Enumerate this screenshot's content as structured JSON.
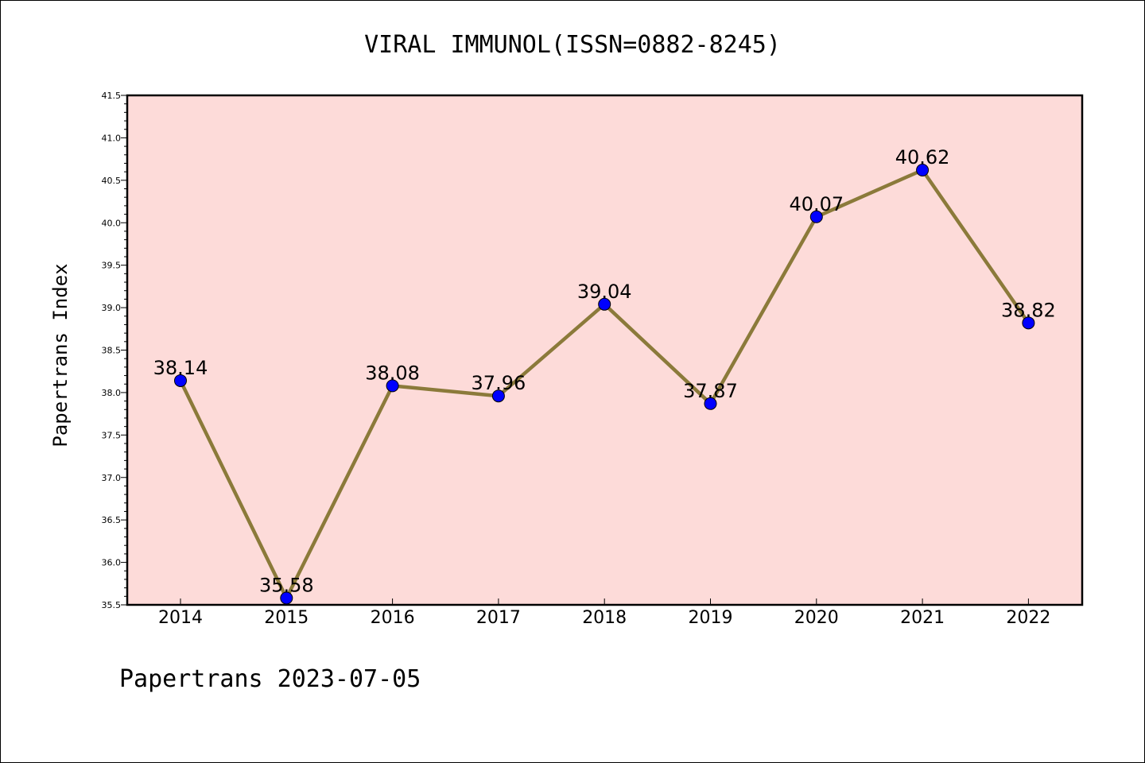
{
  "chart_data": {
    "type": "line",
    "title": "VIRAL IMMUNOL(ISSN=0882-8245)",
    "xlabel": "",
    "ylabel": "Papertrans Index",
    "categories": [
      "2014",
      "2015",
      "2016",
      "2017",
      "2018",
      "2019",
      "2020",
      "2021",
      "2022"
    ],
    "values": [
      38.14,
      35.58,
      38.08,
      37.96,
      39.04,
      37.87,
      40.07,
      40.62,
      38.82
    ],
    "data_labels": [
      "38.14",
      "35.58",
      "38.08",
      "37.96",
      "39.04",
      "37.87",
      "40.07",
      "40.62",
      "38.82"
    ],
    "ylim": [
      35.5,
      41.5
    ],
    "yticks": [
      35.5,
      36.0,
      36.5,
      37.0,
      37.5,
      38.0,
      38.5,
      39.0,
      39.5,
      40.0,
      40.5,
      41.0,
      41.5
    ],
    "ytick_labels": [
      "35.5",
      "36.0",
      "36.5",
      "37.0",
      "37.5",
      "38.0",
      "38.5",
      "39.0",
      "39.5",
      "40.0",
      "40.5",
      "41.0",
      "41.5"
    ],
    "grid": false,
    "legend": "none",
    "colors": {
      "plot_background": "#fddbd9",
      "line": "#8b7a3a",
      "marker": "#0000ff"
    }
  },
  "footer": "Papertrans 2023-07-05"
}
